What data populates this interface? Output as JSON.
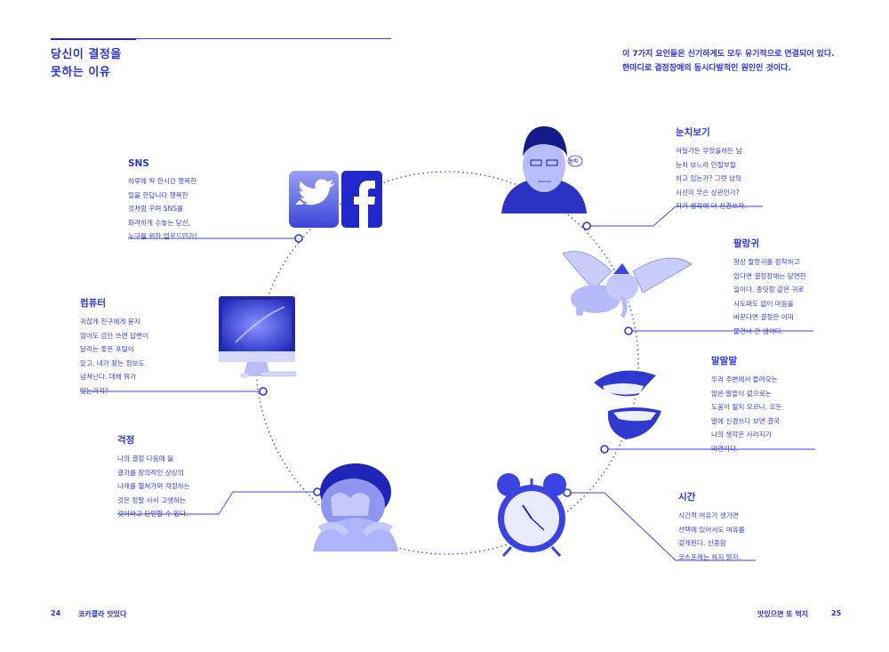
{
  "header": {
    "title_line1": "당신이 결정을",
    "title_line2": "못하는 이유",
    "intro_line1": "이 7가지 요인들은 신기하게도 모두 유기적으로 연결되어 있다.",
    "intro_line2": "한마디로 결정장애의 동시다발적인 원인인 것이다."
  },
  "nodes": [
    {
      "id": "sns",
      "title": "SNS",
      "lines": [
        "하루에 딱 한시간 행복한",
        "일을 한답니다 행복한",
        "것처럼 꾸며 SNS를",
        "화려하게 수놓는 당신,",
        "누구를 위한 업로드인가!"
      ],
      "icon": "twitter-facebook-icon"
    },
    {
      "id": "computer",
      "title": "컴퓨터",
      "lines": [
        "귀찮게 친구에게 묻지",
        "않아도 금만 쓰면 답변이",
        "달리는 좋은 포털이",
        "있고, 내가 찾는 정보도",
        "넘쳐난다. 대체 뭐가",
        "맞는거지?"
      ],
      "icon": "imac-icon"
    },
    {
      "id": "worry",
      "title": "걱정",
      "lines": [
        "나의 결정 다음에 올",
        "결과를 창의적인 상상의",
        "나래를 펼쳐가며 걱정하는",
        "것은 정말 사서 고생하는",
        "것이라고 단언할 수 있다."
      ],
      "icon": "crying-child-image"
    },
    {
      "id": "nunchi",
      "title": "눈치보기",
      "lines": [
        "어딜가든 무엇을하든 남",
        "눈치 보느라 안절부절",
        "하고 있는가? 그럿 남의",
        "시선이 무슨 상관인가?",
        "자기 생각에 더 신경쓰자."
      ],
      "icon": "man-portrait-image"
    },
    {
      "id": "palrangui",
      "title": "팔랑귀",
      "lines": [
        "항상 팔랑귀를 장착하고",
        "있다면 결정장애는 당연한",
        "일이다. 종잇장 같은 귀로",
        "시도때도 없이 마음을",
        "바꾼다면 결정은 이미",
        "물건너 간 셈이다."
      ],
      "icon": "dumbo-elephant-image"
    },
    {
      "id": "malmalmal",
      "title": "말말말",
      "lines": [
        "우리 주변에서 들려오는",
        "많은 말들이 겉으로는",
        "도움이 될지 모르나, 오든",
        "말에 신경쓰다 보면 결국",
        "나의 생각은 사라지기",
        "마련이다."
      ],
      "icon": "lips-mouth-image"
    },
    {
      "id": "time",
      "title": "시간",
      "lines": [
        "시간적 여유가 생기면",
        "선택에 있어서도 여유를",
        "갖게된다. 신중함",
        "코스프레는 하지 말자."
      ],
      "icon": "alarm-clock-image"
    }
  ],
  "icons": {
    "mouth_bubble": "눈치"
  },
  "footer": {
    "left_page": "24",
    "left_title": "코카콜라 맛있다",
    "right_title": "맛있으면 또 먹지",
    "right_page": "25"
  },
  "colors": {
    "accent": "#2a35d6",
    "line": "#3a44e0"
  }
}
